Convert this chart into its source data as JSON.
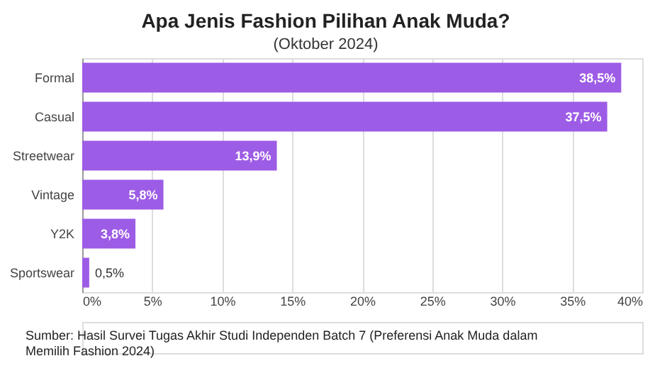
{
  "chart_data": {
    "type": "bar",
    "orientation": "horizontal",
    "title": "Apa Jenis Fashion Pilihan Anak Muda?",
    "subtitle": "(Oktober 2024)",
    "categories": [
      "Formal",
      "Casual",
      "Streetwear",
      "Vintage",
      "Y2K",
      "Sportswear"
    ],
    "values": [
      38.5,
      37.5,
      13.9,
      5.8,
      3.8,
      0.5
    ],
    "value_labels": [
      "38,5%",
      "37,5%",
      "13,9%",
      "5,8%",
      "3,8%",
      "0,5%"
    ],
    "color": "#9d5ce6",
    "xlim": [
      0,
      40
    ],
    "xticks": [
      {
        "value": 0,
        "label": "0%"
      },
      {
        "value": 5,
        "label": "5%"
      },
      {
        "value": 10,
        "label": "10%"
      },
      {
        "value": 15,
        "label": "15%"
      },
      {
        "value": 20,
        "label": "20%"
      },
      {
        "value": 25,
        "label": "25%"
      },
      {
        "value": 30,
        "label": "30%"
      },
      {
        "value": 35,
        "label": "35%"
      },
      {
        "value": 40,
        "label": "40%"
      }
    ],
    "grid": "x",
    "annotations": [
      "Sumber: Hasil Survei Tugas Akhir Studi Independen Batch 7 (Preferensi Anak Muda dalam Memilih Fashion 2024)"
    ]
  }
}
